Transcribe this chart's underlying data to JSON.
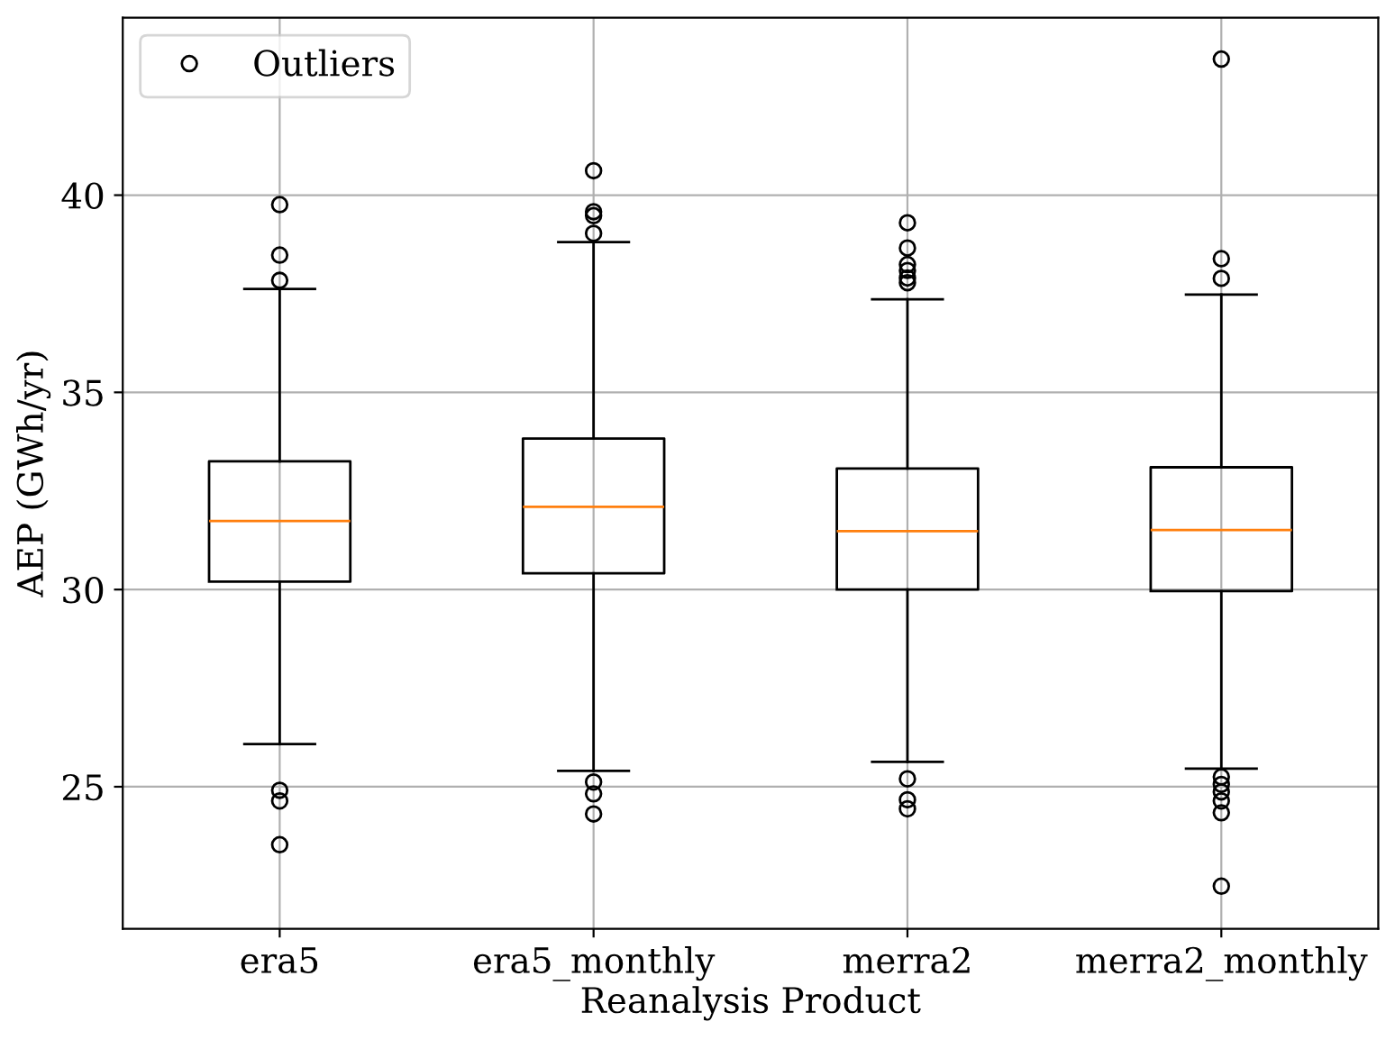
{
  "chart_data": {
    "type": "box",
    "xlabel": "Reanalysis Product",
    "ylabel": "AEP (GWh/yr)",
    "categories": [
      "era5",
      "era5_monthly",
      "merra2",
      "merra2_monthly"
    ],
    "ylim": [
      21.4,
      44.5
    ],
    "yticks": [
      25,
      30,
      35,
      40
    ],
    "grid": true,
    "legend": "top left",
    "series": [
      {
        "name": "Outliers",
        "color": "#000000",
        "boxes": [
          {
            "low": 26.08,
            "q1": 30.2,
            "median": 31.74,
            "q3": 33.25,
            "high": 37.62,
            "outliers": [
              39.76,
              38.48,
              37.84,
              24.91,
              24.64,
              23.53
            ]
          },
          {
            "low": 25.4,
            "q1": 30.41,
            "median": 32.1,
            "q3": 33.83,
            "high": 38.81,
            "outliers": [
              40.62,
              39.58,
              39.48,
              39.03,
              25.12,
              24.82,
              24.31
            ]
          },
          {
            "low": 25.63,
            "q1": 30.0,
            "median": 31.48,
            "q3": 33.07,
            "high": 37.36,
            "outliers": [
              39.3,
              38.66,
              38.24,
              38.09,
              37.9,
              37.78,
              25.2,
              24.67,
              24.44
            ]
          },
          {
            "low": 25.46,
            "q1": 29.96,
            "median": 31.51,
            "q3": 33.1,
            "high": 37.48,
            "outliers": [
              43.45,
              38.39,
              37.89,
              25.25,
              25.06,
              24.87,
              24.64,
              24.34,
              22.48
            ]
          }
        ]
      }
    ]
  }
}
